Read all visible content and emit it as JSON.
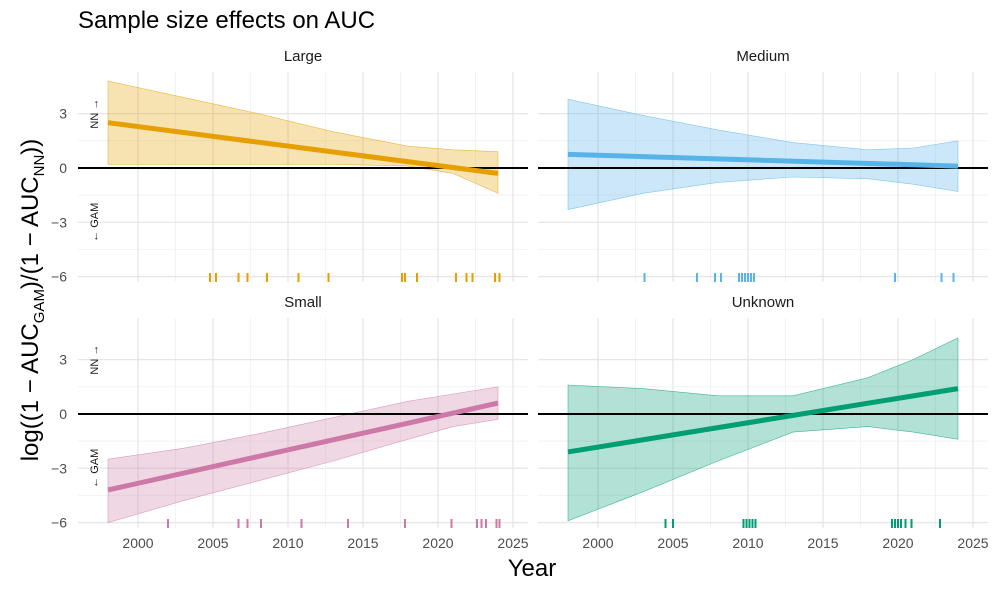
{
  "chart_data": {
    "type": "line",
    "title": "Sample size effects on AUC",
    "xlabel": "Year",
    "ylabel": {
      "prefix": "log((1 − AUC",
      "sub1": "GAM",
      "mid": ")/(1 − AUC",
      "sub2": "NN",
      "suffix": "))"
    },
    "xlim": [
      1996,
      2026
    ],
    "ylim": [
      -6.3,
      5.3
    ],
    "x_ticks": [
      2000,
      2005,
      2010,
      2015,
      2020,
      2025
    ],
    "y_ticks": [
      -6,
      -3,
      0,
      3
    ],
    "reference_line_y": 0,
    "annotations": {
      "up": "NN →",
      "down": "← GAM"
    },
    "panels": [
      {
        "name": "Large",
        "color": "#E69F00",
        "line": {
          "x": [
            1998,
            2024
          ],
          "y": [
            2.5,
            -0.3
          ]
        },
        "ribbon": {
          "x": [
            1998,
            2003,
            2008,
            2013,
            2018,
            2021,
            2024
          ],
          "lower": [
            0.2,
            0.2,
            0.2,
            0.2,
            0.1,
            -0.3,
            -1.4
          ],
          "upper": [
            4.8,
            3.9,
            3.0,
            2.0,
            1.2,
            1.0,
            0.9
          ]
        },
        "rug_years": [
          2004.8,
          2005.2,
          2006.7,
          2007.3,
          2008.6,
          2010.7,
          2012.7,
          2017.6,
          2017.8,
          2018.6,
          2021.2,
          2021.9,
          2022.3,
          2023.8,
          2024.1
        ]
      },
      {
        "name": "Medium",
        "color": "#56B4E9",
        "line": {
          "x": [
            1998,
            2024
          ],
          "y": [
            0.75,
            0.1
          ]
        },
        "ribbon": {
          "x": [
            1998,
            2003,
            2008,
            2013,
            2018,
            2021,
            2024
          ],
          "lower": [
            -2.3,
            -1.4,
            -0.8,
            -0.5,
            -0.6,
            -0.9,
            -1.3
          ],
          "upper": [
            3.8,
            2.9,
            2.1,
            1.4,
            1.0,
            1.1,
            1.5
          ]
        },
        "rug_years": [
          2003.1,
          2006.6,
          2007.8,
          2008.2,
          2009.4,
          2009.6,
          2009.8,
          2010.0,
          2010.2,
          2010.4,
          2019.8,
          2022.9,
          2023.7
        ]
      },
      {
        "name": "Small",
        "color": "#CC79A7",
        "line": {
          "x": [
            1998,
            2024
          ],
          "y": [
            -4.2,
            0.6
          ]
        },
        "ribbon": {
          "x": [
            1998,
            2003,
            2008,
            2013,
            2018,
            2021,
            2024
          ],
          "lower": [
            -6.0,
            -4.8,
            -3.7,
            -2.6,
            -1.4,
            -0.7,
            -0.3
          ],
          "upper": [
            -2.5,
            -1.9,
            -1.1,
            -0.2,
            0.7,
            1.1,
            1.5
          ]
        },
        "rug_years": [
          2002.0,
          2006.7,
          2007.3,
          2008.2,
          2010.9,
          2014.0,
          2017.8,
          2020.9,
          2022.6,
          2022.9,
          2023.2,
          2023.9,
          2024.1
        ]
      },
      {
        "name": "Unknown",
        "color": "#009E73",
        "line": {
          "x": [
            1998,
            2024
          ],
          "y": [
            -2.1,
            1.4
          ]
        },
        "ribbon": {
          "x": [
            1998,
            2003,
            2008,
            2013,
            2018,
            2021,
            2024
          ],
          "lower": [
            -5.9,
            -4.3,
            -2.6,
            -1.0,
            -0.7,
            -1.0,
            -1.4
          ],
          "upper": [
            1.6,
            1.4,
            1.0,
            1.0,
            2.0,
            3.0,
            4.2
          ]
        },
        "rug_years": [
          2004.5,
          2005.0,
          2009.7,
          2009.9,
          2010.1,
          2010.3,
          2010.5,
          2019.6,
          2019.8,
          2020.0,
          2020.2,
          2020.5,
          2020.9,
          2022.8
        ]
      }
    ]
  }
}
